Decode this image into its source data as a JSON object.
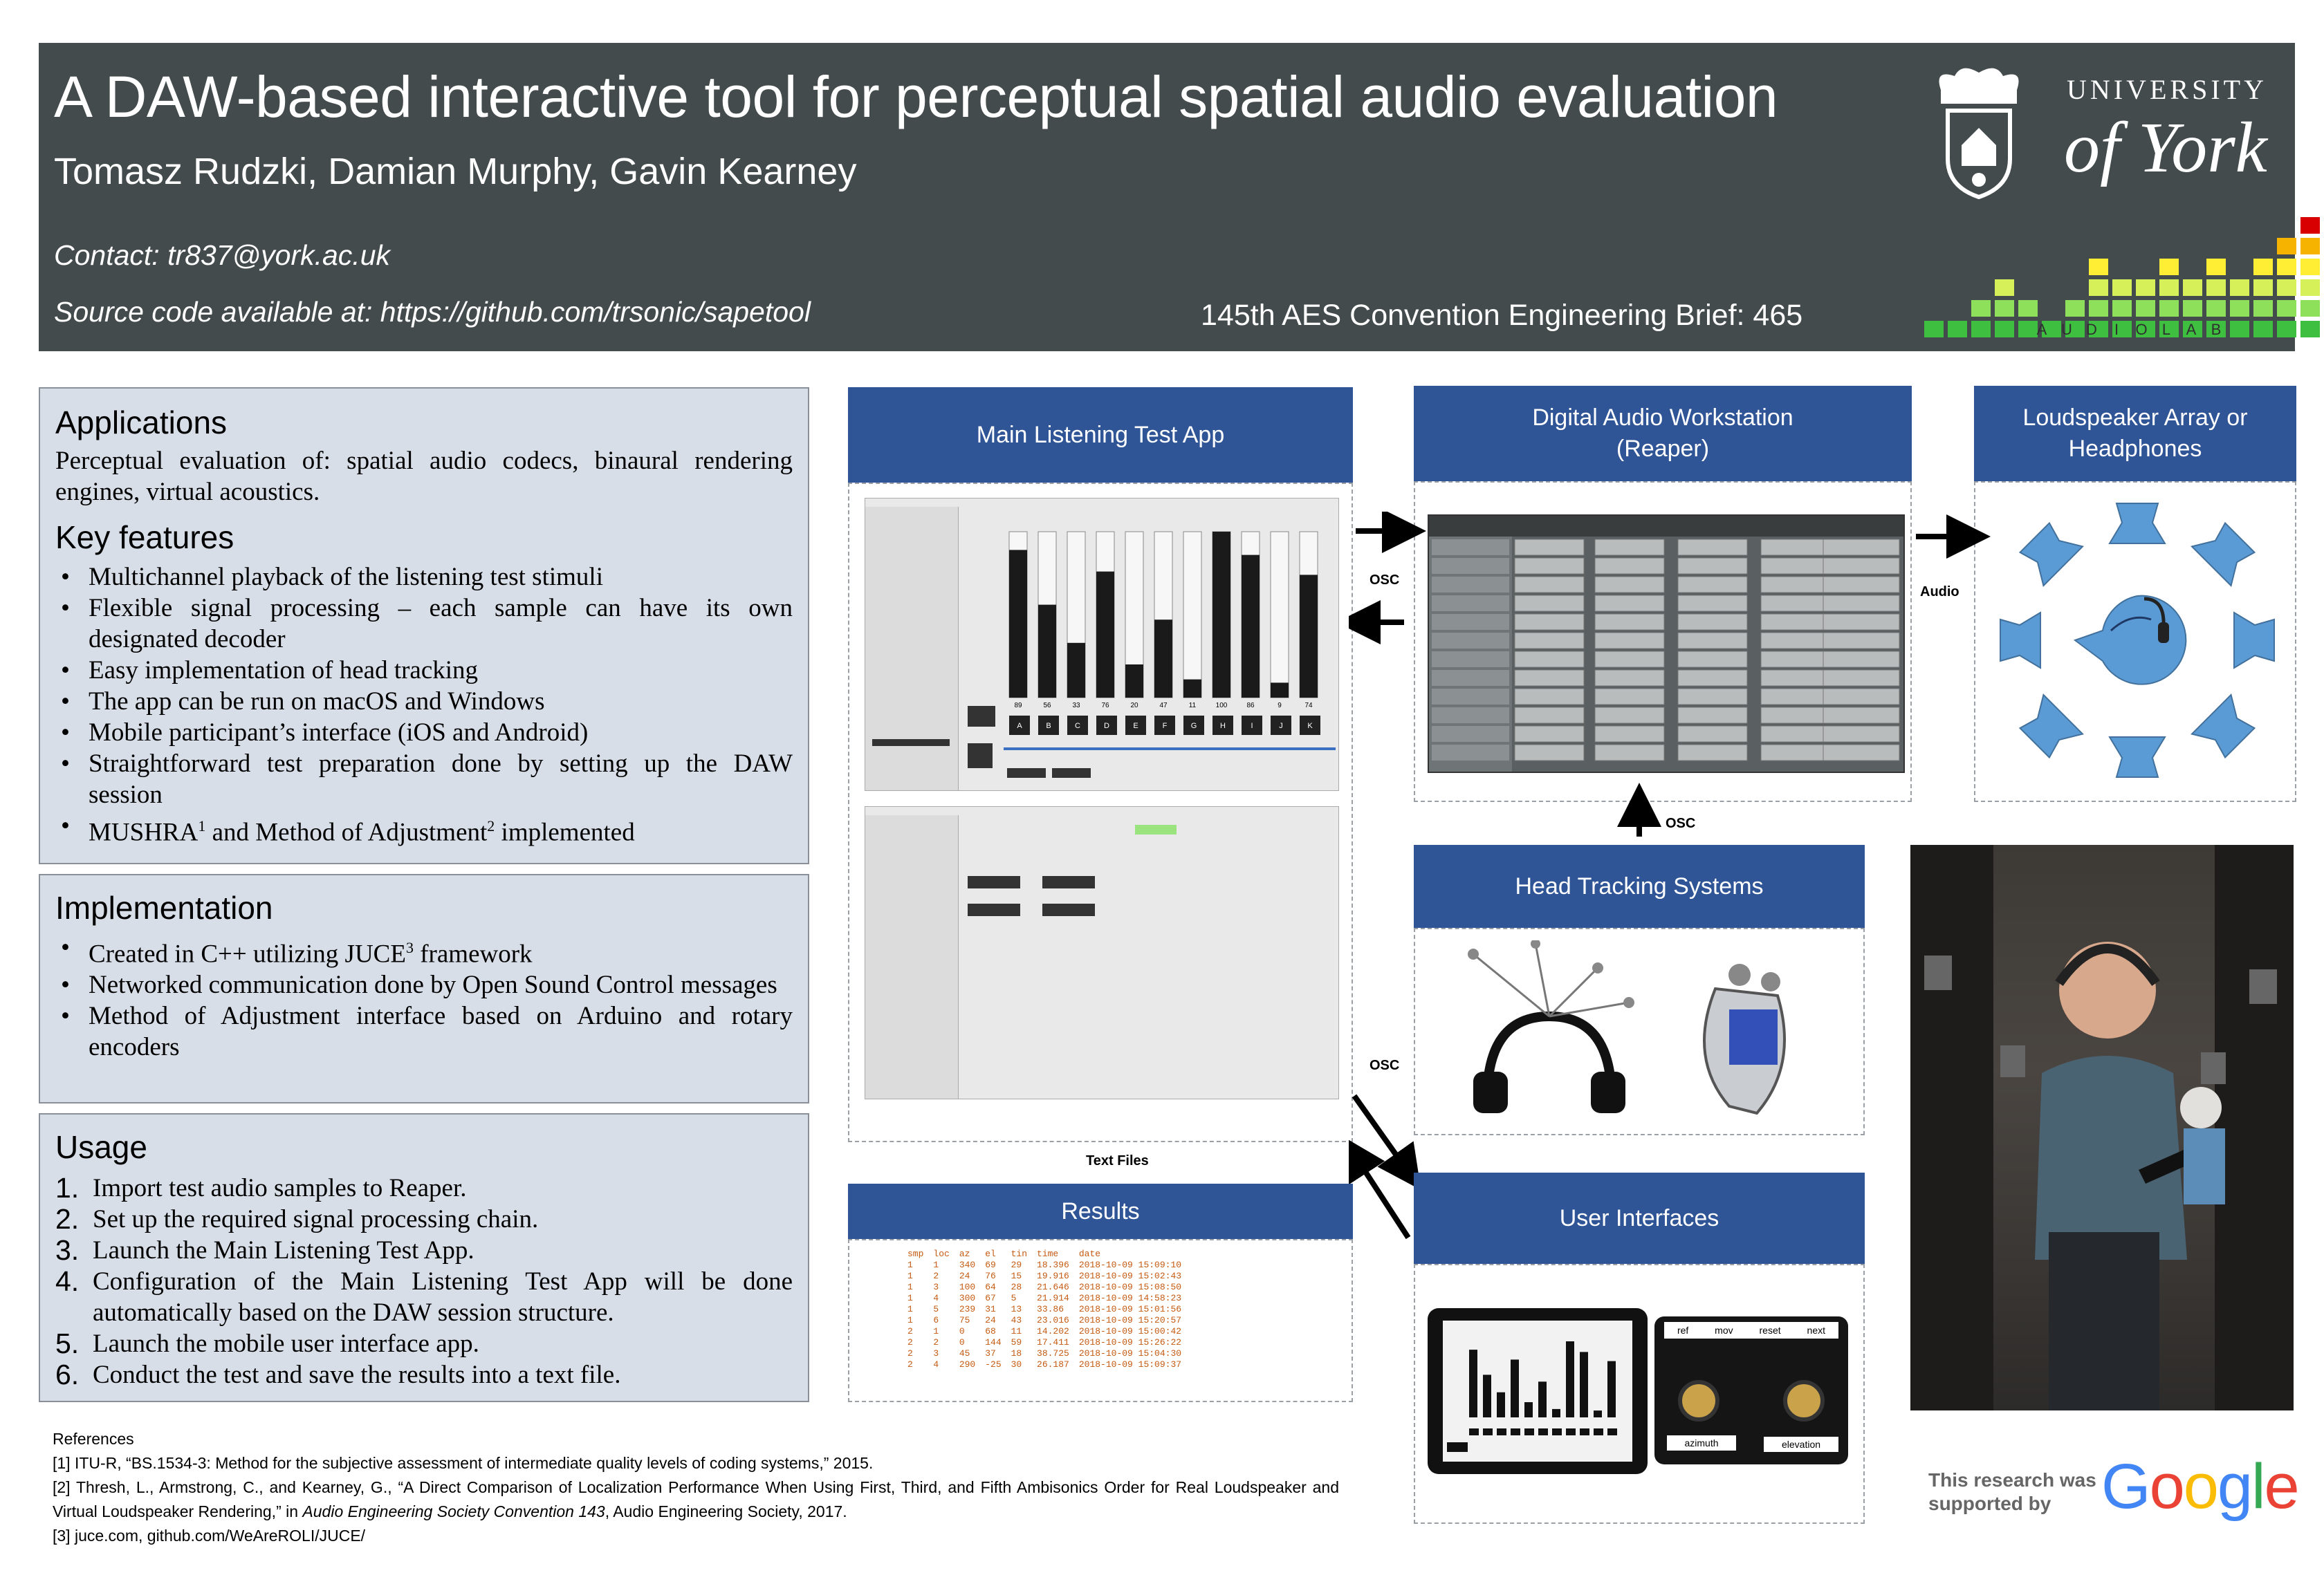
{
  "header": {
    "title": "A DAW-based interactive tool for perceptual spatial audio evaluation",
    "authors": "Tomasz Rudzki, Damian Murphy, Gavin Kearney",
    "contact": "Contact: tr837@york.ac.uk",
    "source": "Source code available at: https://github.com/trsonic/sapetool",
    "conference": "145th AES Convention Engineering Brief: 465",
    "logo_university": "UNIVERSITY",
    "logo_of_york": "of York",
    "audiolab_letters": [
      "A",
      "U",
      "D",
      "I",
      "O",
      "L",
      "A",
      "B"
    ]
  },
  "applications": {
    "heading": "Applications",
    "text": "Perceptual evaluation of: spatial audio codecs, binaural rendering engines, virtual acoustics."
  },
  "key_features": {
    "heading": "Key features",
    "items": [
      "Multichannel playback of the listening test stimuli",
      "Flexible signal processing – each sample can have its own designated decoder",
      "Easy implementation of head tracking",
      "The app can be run on macOS and Windows",
      "Mobile participant’s interface (iOS and Android)",
      "Straightforward test preparation done by setting up the DAW session",
      "MUSHRA",
      "and Method of Adjustment",
      "implemented",
      "1",
      "2"
    ]
  },
  "implementation": {
    "heading": "Implementation",
    "item1_a": "Created in C++ utilizing JUCE",
    "item1_sup": "3",
    "item1_b": " framework",
    "item2": "Networked communication done by Open Sound Control messages",
    "item3": "Method of Adjustment interface based on Arduino and rotary encoders"
  },
  "usage": {
    "heading": "Usage",
    "items": [
      {
        "n": "1.",
        "text": "Import test audio samples to Reaper."
      },
      {
        "n": "2.",
        "text": "Set up the required signal processing chain."
      },
      {
        "n": "3.",
        "text": "Launch the Main Listening Test App."
      },
      {
        "n": "4.",
        "text": "Configuration of the Main Listening Test App will be done automatically based on the DAW session structure."
      },
      {
        "n": "5.",
        "text": "Launch the mobile user interface app."
      },
      {
        "n": "6.",
        "text": "Conduct the test and save the results into a text file."
      }
    ]
  },
  "diagram": {
    "main_app": "Main Listening Test App",
    "daw": "Digital Audio Workstation (Reaper)",
    "loudspeaker": "Loudspeaker Array or Headphones",
    "head_tracking": "Head Tracking Systems",
    "results": "Results",
    "user_interfaces": "User Interfaces",
    "osc": "OSC",
    "audio": "Audio",
    "text_files": "Text Files",
    "mushra_values": [
      "89",
      "56",
      "33",
      "76",
      "20",
      "47",
      "11",
      "100",
      "86",
      "9",
      "74"
    ],
    "mushra_heights": [
      0.89,
      0.56,
      0.33,
      0.76,
      0.2,
      0.47,
      0.11,
      1.0,
      0.86,
      0.09,
      0.74
    ],
    "mushra_buttons": [
      "A",
      "B",
      "C",
      "D",
      "E",
      "F",
      "G",
      "H",
      "I",
      "J",
      "K"
    ],
    "ui_buttons": [
      "ref",
      "mov",
      "reset",
      "next"
    ],
    "ui_knobs": [
      "azimuth",
      "elevation"
    ]
  },
  "results_table": {
    "columns": [
      "smp",
      "loc",
      "az",
      "el",
      "tin",
      "time",
      "date"
    ],
    "rows": [
      [
        "1",
        "1",
        "340",
        "69",
        "29",
        "18.396",
        "2018-10-09 15:09:10"
      ],
      [
        "1",
        "2",
        "24",
        "76",
        "15",
        "19.916",
        "2018-10-09 15:02:43"
      ],
      [
        "1",
        "3",
        "100",
        "64",
        "28",
        "21.646",
        "2018-10-09 15:08:50"
      ],
      [
        "1",
        "4",
        "300",
        "67",
        "5",
        "21.914",
        "2018-10-09 14:58:23"
      ],
      [
        "1",
        "5",
        "239",
        "31",
        "13",
        "33.86",
        "2018-10-09 15:01:56"
      ],
      [
        "1",
        "6",
        "75",
        "24",
        "43",
        "23.016",
        "2018-10-09 15:20:57"
      ],
      [
        "2",
        "1",
        "0",
        "68",
        "11",
        "14.202",
        "2018-10-09 15:00:42"
      ],
      [
        "2",
        "2",
        "0",
        "144",
        "59",
        "17.411",
        "2018-10-09 15:26:22"
      ],
      [
        "2",
        "3",
        "45",
        "37",
        "18",
        "38.725",
        "2018-10-09 15:04:30"
      ],
      [
        "2",
        "4",
        "290",
        "-25",
        "30",
        "26.187",
        "2018-10-09 15:09:37"
      ]
    ]
  },
  "references": {
    "heading": "References",
    "r1": "[1] ITU-R, “BS.1534-3: Method for the subjective assessment of intermediate quality levels of coding systems,” 2015.",
    "r2a": "[2] Thresh, L., Armstrong, C., and Kearney, G., “A Direct Comparison of Localization Performance When Using First, Third, and Fifth Ambisonics Order for Real Loudspeaker and Virtual Loudspeaker Rendering,” in ",
    "r2b": "Audio Engineering Society Convention 143",
    "r2c": ", Audio Engineering Society, 2017.",
    "r3": "[3] juce.com, github.com/WeAreROLI/JUCE/"
  },
  "sponsor": {
    "text": "This research was supported by",
    "google": [
      "G",
      "o",
      "o",
      "g",
      "l",
      "e"
    ],
    "colors": [
      "#4285F4",
      "#EA4335",
      "#FBBC05",
      "#4285F4",
      "#34A853",
      "#EA4335"
    ]
  }
}
